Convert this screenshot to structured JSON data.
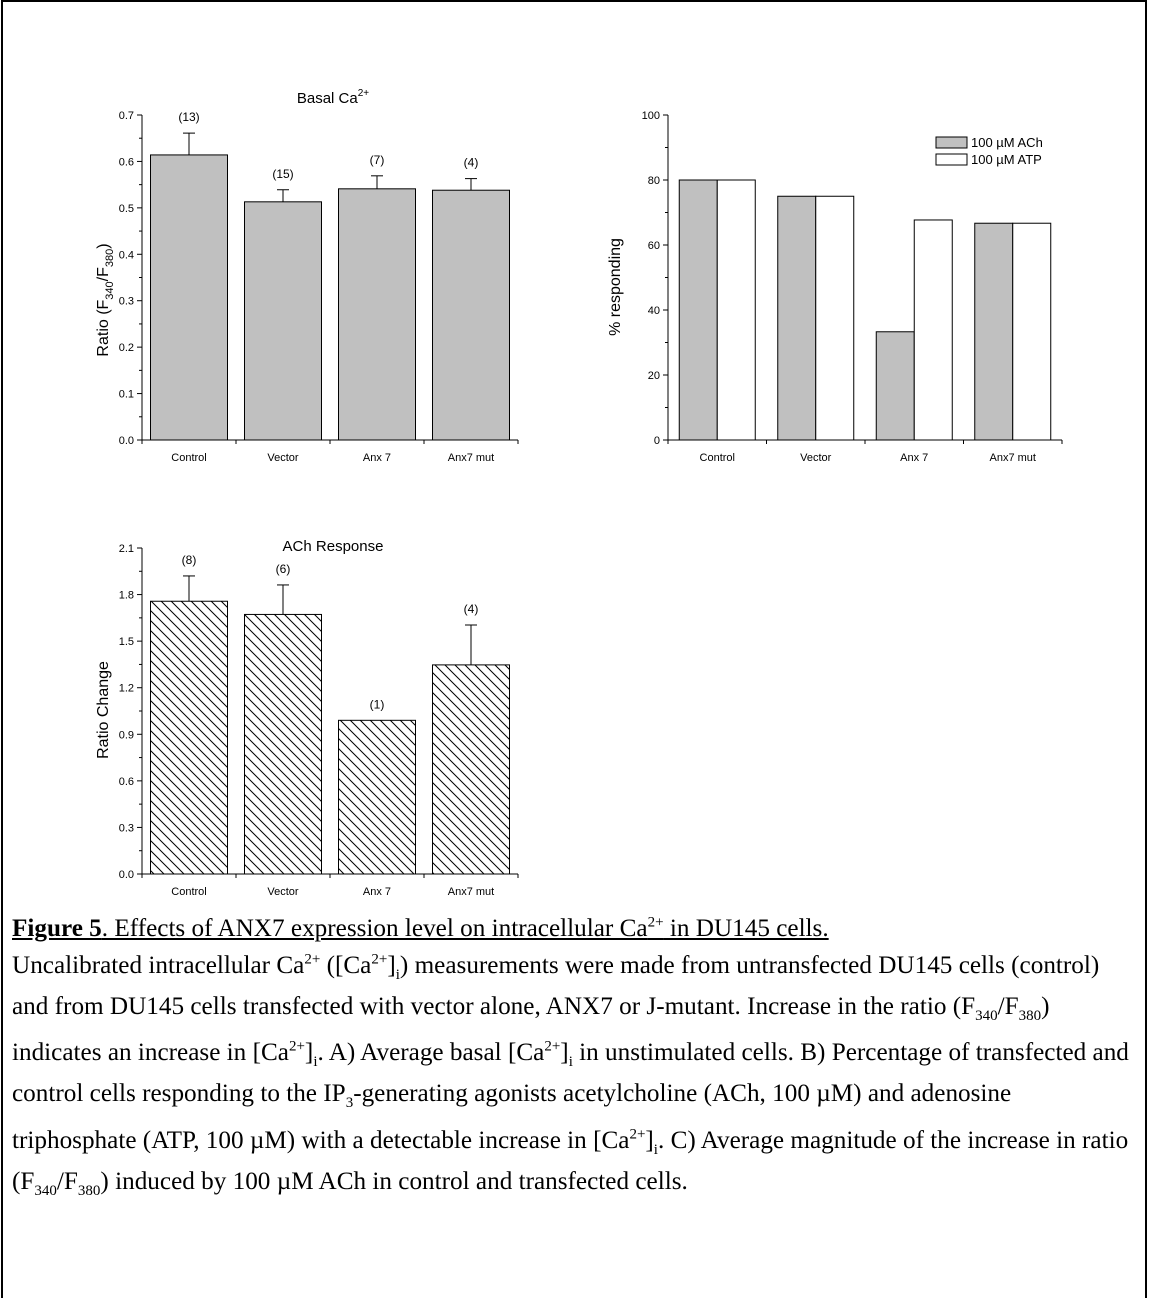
{
  "chart_data": [
    {
      "type": "bar",
      "title": "Basal Ca2+",
      "ylabel": "Ratio (F340/F380)",
      "categories": [
        "Control",
        "Vector",
        "Anx 7",
        "Anx7 mut"
      ],
      "series": [
        {
          "values": [
            0.614,
            0.513,
            0.541,
            0.538
          ],
          "errors": [
            0.047,
            0.026,
            0.028,
            0.025
          ]
        }
      ],
      "bar_labels": [
        "(13)",
        "(15)",
        "(7)",
        "(4)"
      ],
      "ylim": [
        0,
        0.7
      ],
      "yticks": [
        "0.0",
        "0.1",
        "0.2",
        "0.3",
        "0.4",
        "0.5",
        "0.6",
        "0.7"
      ],
      "fill": "#c0c0c0",
      "grid": false
    },
    {
      "type": "bar",
      "title": "",
      "ylabel": "% responding",
      "categories": [
        "Control",
        "Vector",
        "Anx 7",
        "Anx7 mut"
      ],
      "series": [
        {
          "name": "100 µM ACh",
          "values": [
            80,
            75,
            33.3,
            66.7
          ],
          "color": "#c0c0c0"
        },
        {
          "name": "100 µM ATP",
          "values": [
            80,
            75,
            67.7,
            66.7
          ],
          "color": "#ffffff"
        }
      ],
      "ylim": [
        0,
        100
      ],
      "yticks": [
        "0",
        "20",
        "40",
        "60",
        "80",
        "100"
      ],
      "legend": "top-right",
      "grid": false
    },
    {
      "type": "bar",
      "title": "ACh Response",
      "ylabel": "Ratio Change",
      "categories": [
        "Control",
        "Vector",
        "Anx 7",
        "Anx7 mut"
      ],
      "series": [
        {
          "values": [
            1.757,
            1.672,
            0.99,
            1.347
          ],
          "errors": [
            0.163,
            0.19,
            0,
            0.257
          ]
        }
      ],
      "bar_labels": [
        "(8)",
        "(6)",
        "(1)",
        "(4)"
      ],
      "ylim": [
        0,
        2.1
      ],
      "yticks": [
        "0.0",
        "0.3",
        "0.6",
        "0.9",
        "1.2",
        "1.5",
        "1.8",
        "2.1"
      ],
      "fill": "hatched",
      "grid": false
    }
  ],
  "caption": {
    "title": "Figure 5. Effects of ANX7 expression level on intracellular Ca2+ in DU145 cells.",
    "body": "Uncalibrated intracellular Ca2+ ([Ca2+]i) measurements were made from untransfected DU145 cells (control) and from DU145 cells transfected with vector alone, ANX7 or J-mutant. Increase in the ratio (F340/F380) indicates an increase in [Ca2+]i. A) Average basal [Ca2+]i in unstimulated cells. B) Percentage of transfected and control cells responding to the IP3-generating agonists acetylcholine (ACh, 100 µM) and adenosine triphosphate (ATP, 100 µM) with a detectable increase in [Ca2+]i. C) Average magnitude of the increase in ratio (F340/F380) induced by 100 µM ACh in control and transfected cells."
  }
}
